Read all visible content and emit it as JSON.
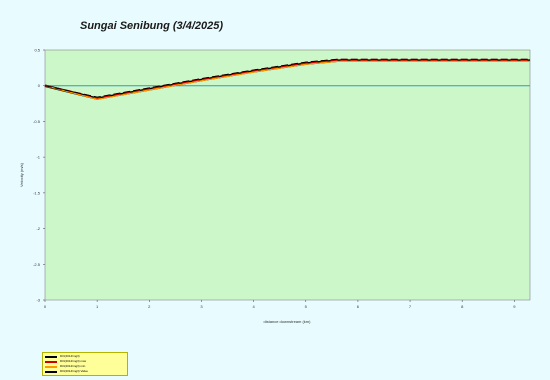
{
  "chart_data": {
    "type": "line",
    "title": "Sungai Senibung (3/4/2025)",
    "xlabel": "distance downstream (km)",
    "ylabel": "Velocity (m/s)",
    "xlim": [
      0,
      9.3
    ],
    "ylim": [
      -3,
      0.5
    ],
    "x_ticks": [
      0,
      1,
      2,
      3,
      4,
      5,
      6,
      7,
      8,
      9
    ],
    "y_ticks": [
      0.5,
      0,
      -0.5,
      -1,
      -1.5,
      -2,
      -2.5,
      -3
    ],
    "y_tick_labels": [
      "0.5",
      "0",
      "-0.5",
      "-1",
      "-1.5",
      "-2",
      "-2.5",
      "-3"
    ],
    "series": [
      {
        "name": "DO(2014/mg/l)",
        "color": "#000000",
        "style": "solid",
        "x": [
          0,
          1,
          2,
          3,
          4,
          5,
          5.6,
          9.3
        ],
        "y": [
          0,
          -0.18,
          -0.05,
          0.08,
          0.2,
          0.31,
          0.35,
          0.35
        ]
      },
      {
        "name": "DO(2014/mg/l) max",
        "color": "#cc0000",
        "style": "dashed",
        "x": [
          0,
          1,
          2,
          3,
          4,
          5,
          5.6,
          9.3
        ],
        "y": [
          0,
          -0.17,
          -0.04,
          0.09,
          0.21,
          0.32,
          0.36,
          0.36
        ]
      },
      {
        "name": "DO(2014/mg/l) min",
        "color": "#ff9900",
        "style": "solid",
        "x": [
          0,
          1,
          2,
          3,
          4,
          5,
          5.6,
          9.3
        ],
        "y": [
          0,
          -0.19,
          -0.06,
          0.07,
          0.19,
          0.3,
          0.34,
          0.34
        ]
      },
      {
        "name": "DO(2014/mg/l) Value",
        "color": "#000000",
        "style": "dashed",
        "x": [
          0,
          1,
          2,
          3,
          4,
          5,
          5.6,
          9.3
        ],
        "y": [
          0,
          -0.16,
          -0.03,
          0.1,
          0.22,
          0.33,
          0.37,
          0.37
        ]
      }
    ],
    "reference_line": {
      "y": 0,
      "color": "#2a9ec0"
    },
    "plot_background": "#ccf7c8",
    "grid": false,
    "legend_position": "bottom-left"
  }
}
